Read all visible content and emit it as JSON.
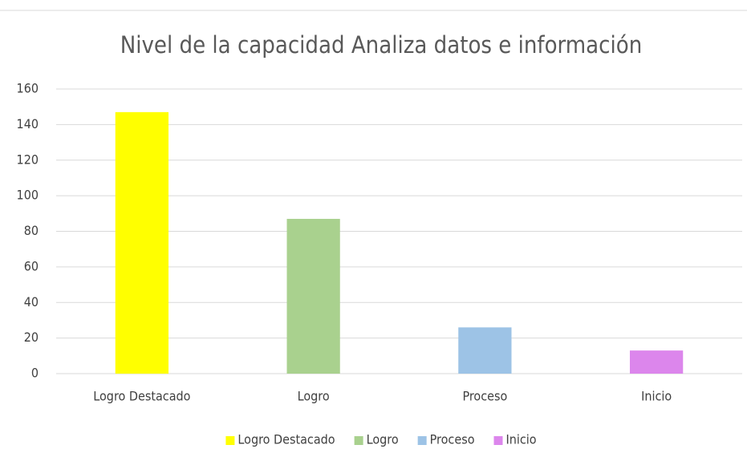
{
  "chart_data": {
    "type": "bar",
    "title": "Nivel de la capacidad Analiza datos e información",
    "categories": [
      "Logro Destacado",
      "Logro",
      "Proceso",
      "Inicio"
    ],
    "values": [
      147,
      87,
      26,
      13
    ],
    "colors": [
      "#ffff00",
      "#a9d18e",
      "#9dc3e6",
      "#dc86ec"
    ],
    "ylim": [
      0,
      160
    ],
    "yticks": [
      0,
      20,
      40,
      60,
      80,
      100,
      120,
      140,
      160
    ],
    "grid": true,
    "legend": "bottom"
  }
}
